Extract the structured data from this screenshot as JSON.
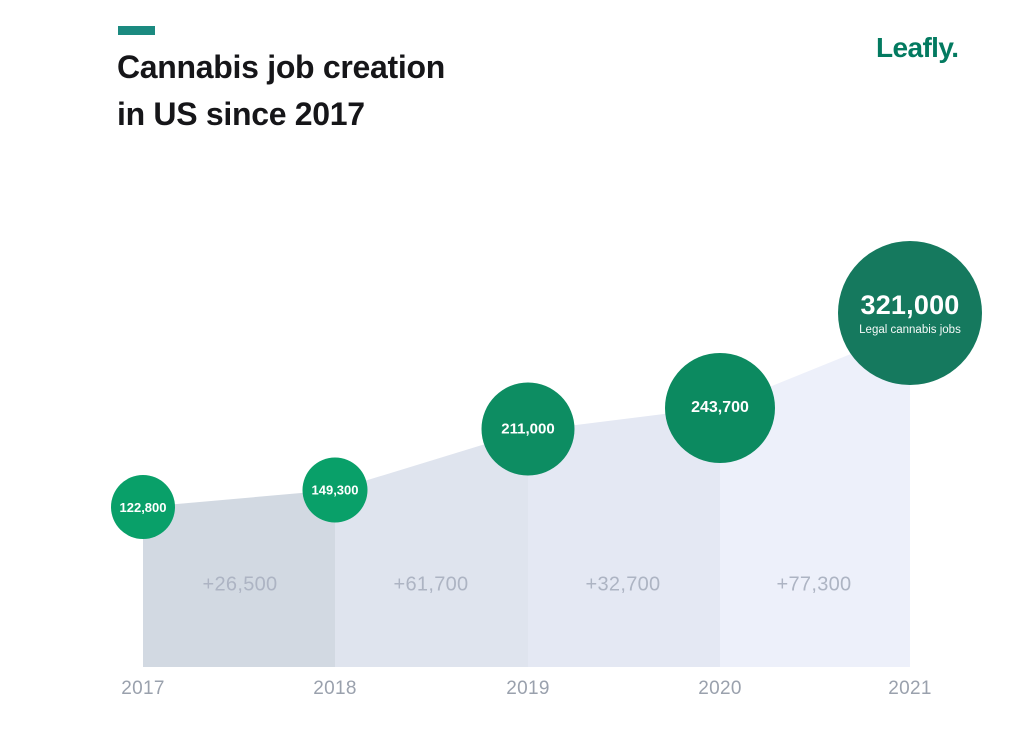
{
  "header": {
    "accent_color": "#1b8a80",
    "title_line1": "Cannabis job creation",
    "title_line2": "in US since 2017",
    "logo_text": "Leafly.",
    "logo_color": "#037a60"
  },
  "chart_data": {
    "type": "area",
    "title": "Cannabis job creation in US since 2017",
    "categories": [
      "2017",
      "2018",
      "2019",
      "2020",
      "2021"
    ],
    "series": [
      {
        "name": "Legal cannabis jobs",
        "values": [
          122800,
          149300,
          211000,
          243700,
          321000
        ]
      }
    ],
    "point_labels": [
      "122,800",
      "149,300",
      "211,000",
      "243,700",
      "321,000"
    ],
    "final_point_sublabel": "Legal cannabis jobs",
    "deltas": [
      26500,
      61700,
      32700,
      77300
    ],
    "delta_labels": [
      "+26,500",
      "+61,700",
      "+32,700",
      "+77,300"
    ],
    "bubble_colors": [
      "#09a069",
      "#09a069",
      "#0d8d62",
      "#0c8a60",
      "#15795e"
    ],
    "segment_colors": [
      "#d2d9e2",
      "#dfe4ee",
      "#e4e8f3",
      "#edf0fa"
    ],
    "xlabel": "",
    "ylabel": "",
    "ylim": [
      0,
      321000
    ],
    "grid": false,
    "legend_position": "none"
  }
}
